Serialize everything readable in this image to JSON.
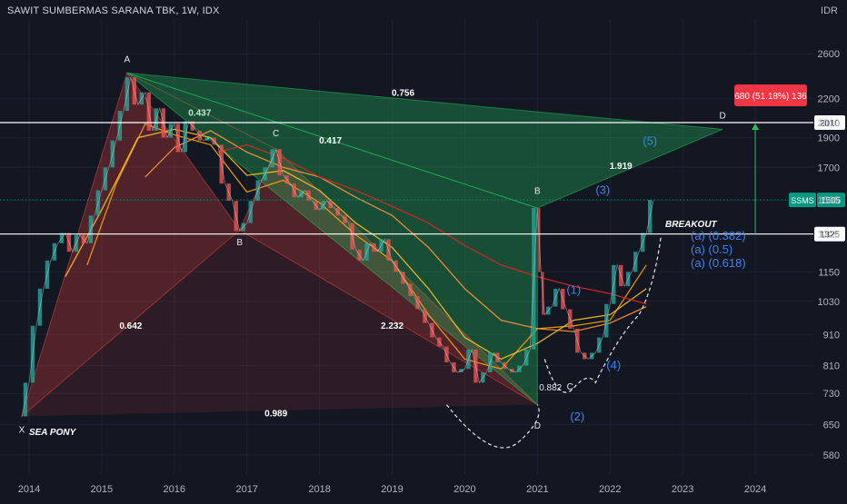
{
  "header": {
    "title": "SAWIT SUMBERMAS SARANA TBK, 1W, IDX",
    "currency": "IDR"
  },
  "chart_data": {
    "type": "line",
    "title": "SAWIT SUMBERMAS SARANA TBK, 1W, IDX",
    "x_ticks": [
      "2014",
      "2015",
      "2016",
      "2017",
      "2018",
      "2019",
      "2020",
      "2021",
      "2022",
      "2023",
      "2024"
    ],
    "y_ticks": [
      580,
      650,
      730,
      810,
      910,
      1030,
      1150,
      1325,
      1505,
      1700,
      1900,
      2010,
      2200,
      2600
    ],
    "y_tick_labels": [
      "580",
      "650",
      "730",
      "810",
      "910",
      "1030",
      "1150",
      "1325",
      "1505",
      "1700",
      "1900",
      "2010",
      "2200",
      "2600"
    ],
    "x_range": [
      2013.6,
      2024.8
    ],
    "y_range": [
      540,
      2950
    ],
    "y_scale": "log",
    "price_series": {
      "name": "SSMS",
      "points": [
        [
          2013.9,
          670
        ],
        [
          2014.0,
          760
        ],
        [
          2014.1,
          940
        ],
        [
          2014.2,
          1080
        ],
        [
          2014.3,
          1200
        ],
        [
          2014.4,
          1280
        ],
        [
          2014.5,
          1330
        ],
        [
          2014.6,
          1240
        ],
        [
          2014.7,
          1320
        ],
        [
          2014.8,
          1280
        ],
        [
          2014.9,
          1420
        ],
        [
          2015.0,
          1560
        ],
        [
          2015.1,
          1700
        ],
        [
          2015.2,
          1880
        ],
        [
          2015.3,
          2100
        ],
        [
          2015.4,
          2380
        ],
        [
          2015.5,
          2150
        ],
        [
          2015.6,
          2250
        ],
        [
          2015.7,
          1950
        ],
        [
          2015.8,
          2120
        ],
        [
          2015.9,
          1900
        ],
        [
          2016.0,
          2000
        ],
        [
          2016.1,
          1800
        ],
        [
          2016.2,
          2020
        ],
        [
          2016.3,
          1950
        ],
        [
          2016.4,
          1880
        ],
        [
          2016.5,
          1900
        ],
        [
          2016.6,
          1850
        ],
        [
          2016.7,
          1600
        ],
        [
          2016.8,
          1500
        ],
        [
          2016.9,
          1340
        ],
        [
          2017.0,
          1380
        ],
        [
          2017.1,
          1500
        ],
        [
          2017.2,
          1620
        ],
        [
          2017.3,
          1700
        ],
        [
          2017.4,
          1820
        ],
        [
          2017.5,
          1650
        ],
        [
          2017.6,
          1600
        ],
        [
          2017.7,
          1520
        ],
        [
          2017.8,
          1560
        ],
        [
          2017.9,
          1500
        ],
        [
          2018.0,
          1450
        ],
        [
          2018.1,
          1500
        ],
        [
          2018.2,
          1460
        ],
        [
          2018.3,
          1420
        ],
        [
          2018.4,
          1380
        ],
        [
          2018.5,
          1250
        ],
        [
          2018.6,
          1200
        ],
        [
          2018.7,
          1280
        ],
        [
          2018.8,
          1240
        ],
        [
          2018.9,
          1300
        ],
        [
          2019.0,
          1200
        ],
        [
          2019.1,
          1150
        ],
        [
          2019.2,
          1100
        ],
        [
          2019.3,
          1050
        ],
        [
          2019.4,
          1000
        ],
        [
          2019.5,
          950
        ],
        [
          2019.6,
          900
        ],
        [
          2019.7,
          870
        ],
        [
          2019.8,
          820
        ],
        [
          2019.9,
          790
        ],
        [
          2020.0,
          800
        ],
        [
          2020.1,
          860
        ],
        [
          2020.2,
          760
        ],
        [
          2020.3,
          790
        ],
        [
          2020.4,
          850
        ],
        [
          2020.5,
          820
        ],
        [
          2020.6,
          800
        ],
        [
          2020.7,
          790
        ],
        [
          2020.8,
          810
        ],
        [
          2020.9,
          860
        ],
        [
          2021.0,
          1460
        ],
        [
          2021.05,
          1150
        ],
        [
          2021.1,
          980
        ],
        [
          2021.2,
          1010
        ],
        [
          2021.3,
          1080
        ],
        [
          2021.4,
          1000
        ],
        [
          2021.5,
          930
        ],
        [
          2021.6,
          850
        ],
        [
          2021.7,
          830
        ],
        [
          2021.8,
          850
        ],
        [
          2021.9,
          900
        ],
        [
          2022.0,
          1020
        ],
        [
          2022.1,
          1180
        ],
        [
          2022.2,
          1090
        ],
        [
          2022.3,
          1150
        ],
        [
          2022.4,
          1240
        ],
        [
          2022.5,
          1330
        ],
        [
          2022.6,
          1505
        ]
      ]
    },
    "moving_averages": [
      {
        "color": "#f59e0b",
        "points": [
          [
            2014.8,
            1180
          ],
          [
            2015.2,
            1600
          ],
          [
            2015.6,
            2000
          ],
          [
            2016.0,
            1920
          ],
          [
            2016.5,
            1850
          ],
          [
            2017.0,
            1550
          ],
          [
            2017.5,
            1620
          ],
          [
            2018.0,
            1490
          ],
          [
            2018.5,
            1320
          ],
          [
            2019.0,
            1200
          ],
          [
            2019.5,
            980
          ],
          [
            2020.0,
            830
          ],
          [
            2020.5,
            800
          ],
          [
            2021.0,
            930
          ],
          [
            2021.5,
            940
          ],
          [
            2022.0,
            960
          ],
          [
            2022.5,
            1180
          ]
        ]
      },
      {
        "color": "#fbbf24",
        "points": [
          [
            2014.5,
            1130
          ],
          [
            2015.0,
            1450
          ],
          [
            2015.5,
            1900
          ],
          [
            2016.0,
            1960
          ],
          [
            2016.5,
            1900
          ],
          [
            2017.0,
            1650
          ],
          [
            2017.5,
            1680
          ],
          [
            2018.0,
            1560
          ],
          [
            2018.5,
            1380
          ],
          [
            2019.0,
            1260
          ],
          [
            2019.5,
            1080
          ],
          [
            2020.0,
            900
          ],
          [
            2020.5,
            830
          ],
          [
            2021.0,
            880
          ],
          [
            2021.5,
            960
          ],
          [
            2022.0,
            980
          ],
          [
            2022.5,
            1080
          ]
        ]
      },
      {
        "color": "#fb923c",
        "points": [
          [
            2015.6,
            1640
          ],
          [
            2016.0,
            1830
          ],
          [
            2016.5,
            1950
          ],
          [
            2017.0,
            1800
          ],
          [
            2017.5,
            1700
          ],
          [
            2018.0,
            1640
          ],
          [
            2018.5,
            1520
          ],
          [
            2019.0,
            1420
          ],
          [
            2019.5,
            1260
          ],
          [
            2020.0,
            1080
          ],
          [
            2020.5,
            960
          ],
          [
            2021.0,
            930
          ],
          [
            2021.5,
            920
          ],
          [
            2022.0,
            950
          ],
          [
            2022.5,
            1010
          ]
        ]
      },
      {
        "color": "#dc2626",
        "points": [
          [
            2016.6,
            1800
          ],
          [
            2017.0,
            1850
          ],
          [
            2017.5,
            1760
          ],
          [
            2018.0,
            1640
          ],
          [
            2018.5,
            1560
          ],
          [
            2019.0,
            1470
          ],
          [
            2019.5,
            1380
          ],
          [
            2020.0,
            1270
          ],
          [
            2020.5,
            1180
          ],
          [
            2021.0,
            1130
          ],
          [
            2021.5,
            1090
          ],
          [
            2022.0,
            1060
          ],
          [
            2022.5,
            1020
          ]
        ]
      }
    ],
    "harmonic_patterns": [
      {
        "color": "#ef4444",
        "points": [
          [
            2013.9,
            670
          ],
          [
            2015.35,
            2420
          ],
          [
            2016.9,
            1345
          ],
          [
            2017.4,
            1820
          ],
          [
            2021.0,
            700
          ]
        ],
        "point_labels": [
          "X",
          "A",
          "B",
          "C",
          "D"
        ],
        "ratios": [
          {
            "text": "0.642",
            "at": [
              2015.4,
              930
            ]
          },
          {
            "text": "0.437",
            "at": [
              2016.35,
              2060
            ]
          },
          {
            "text": "2.232",
            "at": [
              2019.0,
              930
            ]
          },
          {
            "text": "0.989",
            "at": [
              2017.4,
              670
            ]
          }
        ]
      },
      {
        "color": "#22c55e",
        "points": [
          [
            2015.35,
            2420
          ],
          [
            2021.0,
            700
          ],
          [
            2021.0,
            1460
          ],
          [
            2023.55,
            1960
          ]
        ],
        "point_labels": [
          "",
          "",
          "B",
          "D"
        ],
        "ratios": [
          {
            "text": "0.756",
            "at": [
              2019.15,
              2220
            ]
          },
          {
            "text": "0.417",
            "at": [
              2018.15,
              1860
            ]
          },
          {
            "text": "1.919",
            "at": [
              2022.15,
              1690
            ]
          }
        ]
      }
    ],
    "horizontal_levels": [
      {
        "value": 2010,
        "label": "2010"
      },
      {
        "value": 1325,
        "label": "1325"
      }
    ],
    "price_tag": {
      "symbol": "SSMS",
      "value": 1505,
      "color": "#089981"
    },
    "measure_label": {
      "text": "680 (51.18%) 136",
      "color": "#f23645"
    },
    "elliott_waves": [
      {
        "text": "(1)",
        "at": [
          2021.5,
          1060
        ]
      },
      {
        "text": "(2)",
        "at": [
          2021.55,
          660
        ]
      },
      {
        "text": "(3)",
        "at": [
          2021.9,
          1540
        ]
      },
      {
        "text": "(4)",
        "at": [
          2022.05,
          800
        ]
      },
      {
        "text": "(5)",
        "at": [
          2022.55,
          1850
        ]
      }
    ],
    "annotations": [
      {
        "text": "A",
        "at": [
          2015.35,
          2520
        ]
      },
      {
        "text": "X",
        "at": [
          2013.9,
          630
        ]
      },
      {
        "text": "B",
        "at": [
          2016.9,
          1270
        ]
      },
      {
        "text": "C",
        "at": [
          2017.4,
          1910
        ]
      },
      {
        "text": "B",
        "at": [
          2021.0,
          1540
        ]
      },
      {
        "text": "D",
        "at": [
          2021.0,
          640
        ]
      },
      {
        "text": "C",
        "at": [
          2021.45,
          740
        ]
      },
      {
        "text": "D",
        "at": [
          2023.55,
          2040
        ]
      },
      {
        "text": "0.882",
        "at": [
          2021.18,
          738
        ]
      }
    ],
    "text_labels": {
      "sea_pony": "SEA PONY",
      "breakout": "BREAKOUT",
      "fib_levels": [
        "(a) (0.382)",
        "(a) (0.5)",
        "(a) (0.618)"
      ]
    }
  }
}
